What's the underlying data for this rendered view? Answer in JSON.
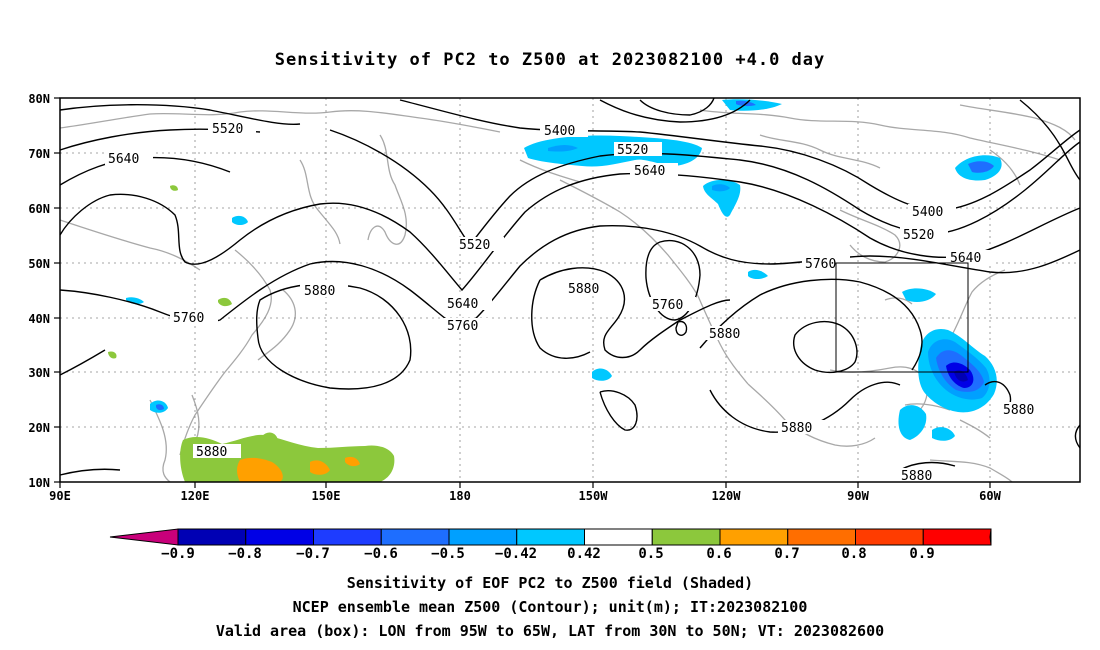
{
  "title": "Sensitivity of PC2 to Z500 at 2023082100 +4.0 day",
  "lat_labels": [
    "80N",
    "70N",
    "60N",
    "50N",
    "40N",
    "30N",
    "20N",
    "10N"
  ],
  "lon_labels": [
    "90E",
    "120E",
    "150E",
    "180",
    "150W",
    "120W",
    "90W",
    "60W"
  ],
  "contour_labels": [
    "5520",
    "5640",
    "5400",
    "5520",
    "5640",
    "5520",
    "5760",
    "5880",
    "5640",
    "5760",
    "5880",
    "5760",
    "5880",
    "5760",
    "5400",
    "5520",
    "5640",
    "5880",
    "5880",
    "5880",
    "5880"
  ],
  "colorbar": {
    "colors": [
      "#c8007a",
      "#0000b4",
      "#0000e6",
      "#1e3cff",
      "#1e6eff",
      "#00a0ff",
      "#00c8ff",
      "#ffffff",
      "#8cc83c",
      "#ffa000",
      "#ff6e00",
      "#ff3c00",
      "#ff0000",
      "#ff9ecb"
    ],
    "labels": [
      "−0.9",
      "−0.8",
      "−0.7",
      "−0.6",
      "−0.5",
      "−0.42",
      "0.42",
      "0.5",
      "0.6",
      "0.7",
      "0.8",
      "0.9"
    ]
  },
  "captions": [
    "Sensitivity of EOF PC2 to Z500 field (Shaded)",
    "NCEP ensemble mean Z500 (Contour); unit(m); IT:2023082100",
    "Valid area (box): LON from 95W to 65W, LAT from 30N to 50N; VT: 2023082600"
  ],
  "valid_area": {
    "lon": [
      "95W",
      "65W"
    ],
    "lat": [
      "30N",
      "50N"
    ]
  }
}
